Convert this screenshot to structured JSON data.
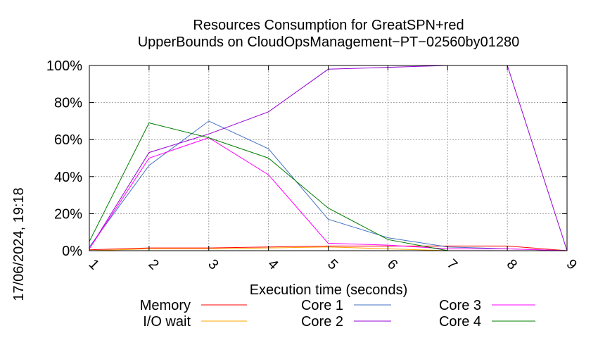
{
  "timestamp": "17/06/2024, 19:18",
  "chart_data": {
    "type": "line",
    "title": "Resources Consumption for GreatSPN+red",
    "subtitle": "UpperBounds on CloudOpsManagement−PT−02560by01280",
    "xlabel": "Execution time (seconds)",
    "ylabel": "",
    "xlim": [
      1,
      9
    ],
    "ylim": [
      0,
      100
    ],
    "x_ticks": [
      "1",
      "2",
      "3",
      "4",
      "5",
      "6",
      "7",
      "8",
      "9"
    ],
    "y_ticks": [
      "0%",
      "20%",
      "40%",
      "60%",
      "80%",
      "100%"
    ],
    "grid": true,
    "legend_position": "bottom",
    "x": [
      1,
      2,
      3,
      4,
      5,
      6,
      7,
      8,
      9
    ],
    "series": [
      {
        "name": "Memory",
        "color": "#ff0000",
        "values": [
          0.5,
          1.5,
          1.5,
          2,
          2.5,
          2.5,
          2.5,
          2.5,
          0
        ]
      },
      {
        "name": "I/O wait",
        "color": "#ffa500",
        "values": [
          0,
          1,
          1,
          1.5,
          2,
          1,
          0,
          0,
          0
        ]
      },
      {
        "name": "Core 1",
        "color": "#4472c4",
        "values": [
          2,
          46,
          70,
          55,
          17,
          7,
          2,
          1,
          0
        ]
      },
      {
        "name": "Core 2",
        "color": "#9400d3",
        "values": [
          1,
          53,
          63,
          75,
          98,
          99,
          100,
          100,
          0
        ]
      },
      {
        "name": "Core 3",
        "color": "#ff00ff",
        "values": [
          1,
          50,
          61,
          41,
          4,
          3,
          1,
          1,
          0
        ]
      },
      {
        "name": "Core 4",
        "color": "#007f00",
        "values": [
          5,
          69,
          61,
          50,
          23,
          6,
          0,
          0,
          0
        ]
      }
    ]
  }
}
